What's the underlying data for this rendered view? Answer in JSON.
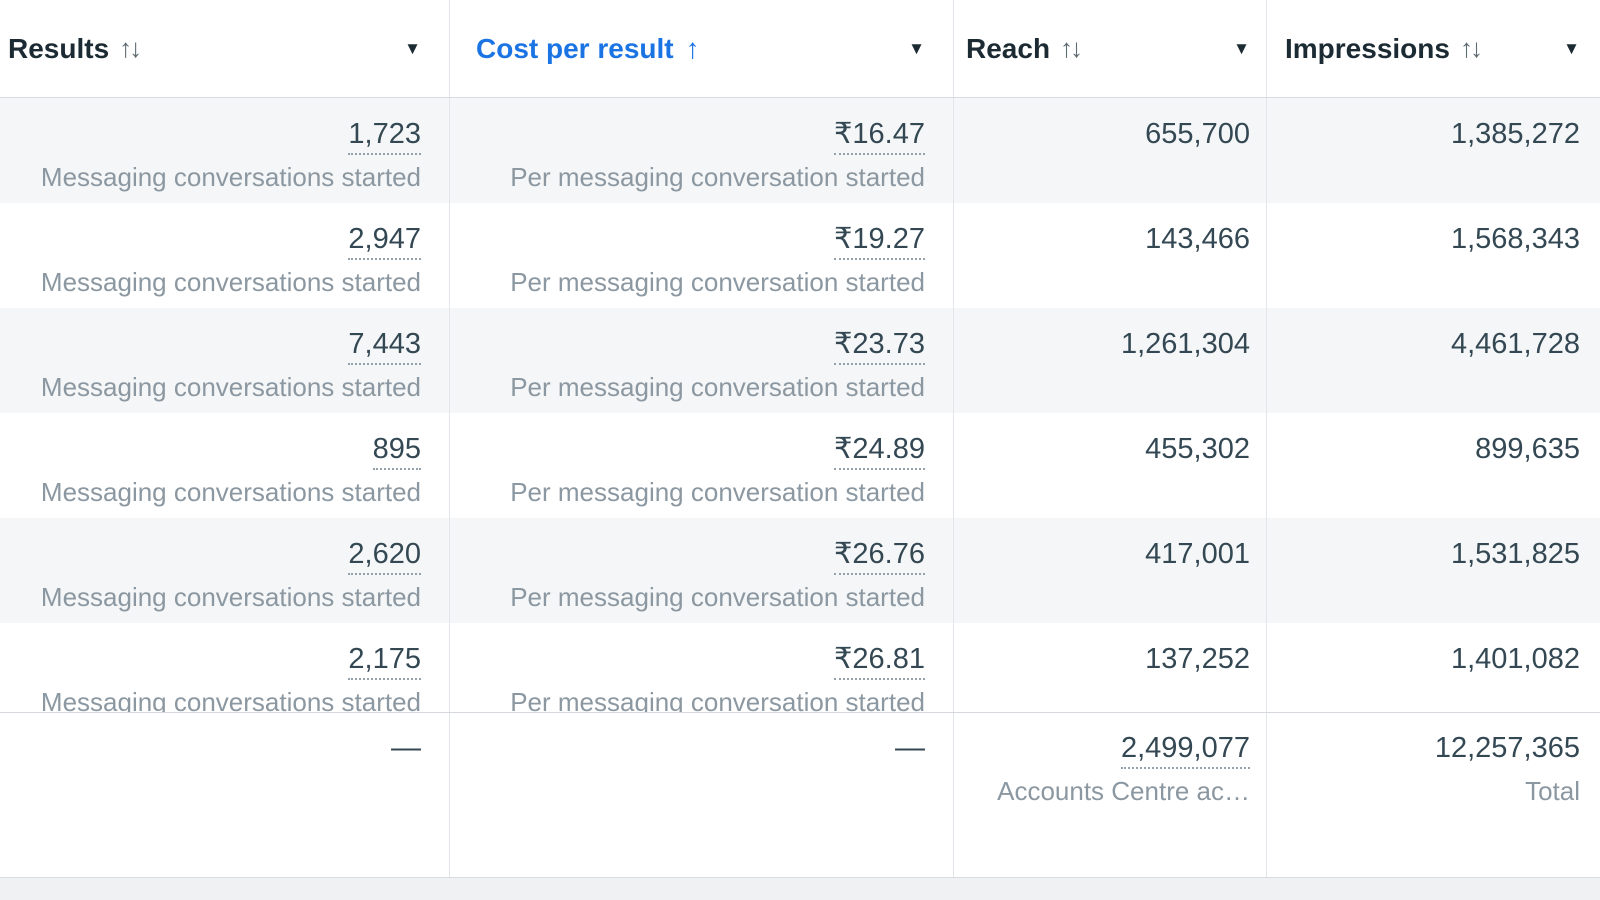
{
  "accent_blue": "#1b74e4",
  "icons": {
    "sort_both": "↑↓",
    "sort_asc": "↑",
    "caret": "▼"
  },
  "columns": [
    {
      "label": "Results",
      "sort_state": "unsorted"
    },
    {
      "label": "Cost per result",
      "sort_state": "sorted-ascending"
    },
    {
      "label": "Reach",
      "sort_state": "unsorted"
    },
    {
      "label": "Impressions",
      "sort_state": "unsorted"
    }
  ],
  "rows": [
    {
      "results": "1,723",
      "results_sub": "Messaging conversations started",
      "cost": "₹16.47",
      "cost_sub": "Per messaging conversation started",
      "reach": "655,700",
      "impressions": "1,385,272"
    },
    {
      "results": "2,947",
      "results_sub": "Messaging conversations started",
      "cost": "₹19.27",
      "cost_sub": "Per messaging conversation started",
      "reach": "143,466",
      "impressions": "1,568,343"
    },
    {
      "results": "7,443",
      "results_sub": "Messaging conversations started",
      "cost": "₹23.73",
      "cost_sub": "Per messaging conversation started",
      "reach": "1,261,304",
      "impressions": "4,461,728"
    },
    {
      "results": "895",
      "results_sub": "Messaging conversations started",
      "cost": "₹24.89",
      "cost_sub": "Per messaging conversation started",
      "reach": "455,302",
      "impressions": "899,635"
    },
    {
      "results": "2,620",
      "results_sub": "Messaging conversations started",
      "cost": "₹26.76",
      "cost_sub": "Per messaging conversation started",
      "reach": "417,001",
      "impressions": "1,531,825"
    },
    {
      "results": "2,175",
      "results_sub": "Messaging conversations started",
      "cost": "₹26.81",
      "cost_sub": "Per messaging conversation started",
      "reach": "137,252",
      "impressions": "1,401,082"
    }
  ],
  "totals": {
    "results": "—",
    "cost": "—",
    "reach": "2,499,077",
    "reach_sub": "Accounts Centre ac…",
    "impressions": "12,257,365",
    "impressions_sub": "Total"
  }
}
